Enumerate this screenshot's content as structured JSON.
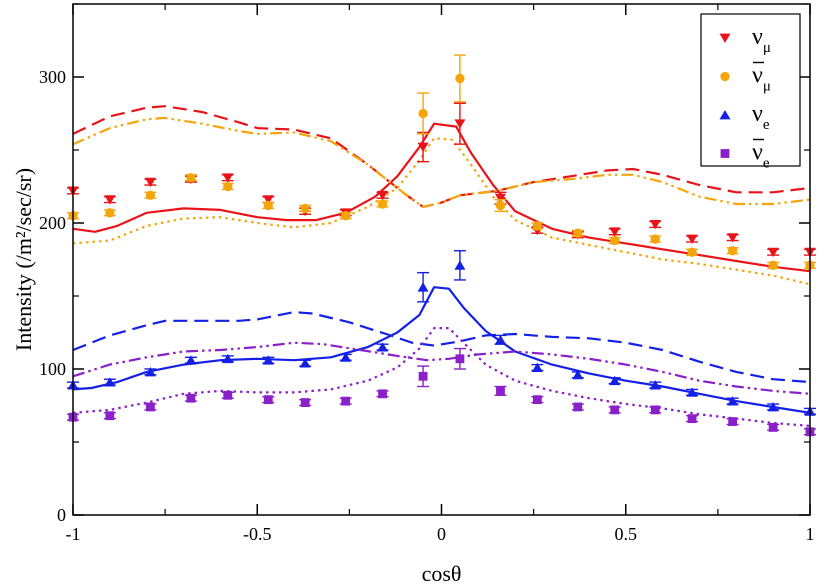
{
  "chart_data": {
    "type": "scatter",
    "title": "",
    "xlabel": "cosθ",
    "ylabel": "Intensity (/m²/sec/sr)",
    "xlim": [
      -1,
      1
    ],
    "ylim": [
      0,
      350
    ],
    "x_ticks": [
      -1,
      -0.5,
      0,
      0.5,
      1
    ],
    "x_tick_labels": [
      "-1",
      "-0.5",
      "0",
      "0.5",
      "1"
    ],
    "y_ticks": [
      0,
      100,
      200,
      300
    ],
    "y_tick_labels": [
      "0",
      "100",
      "200",
      "300"
    ],
    "legend_position": "top-right",
    "legend": [
      {
        "label": "ν",
        "sub": "μ",
        "bar": false,
        "marker": "triangle-down",
        "color": "#e8141a"
      },
      {
        "label": "ν",
        "sub": "μ",
        "bar": true,
        "marker": "circle",
        "color": "#f5a50c"
      },
      {
        "label": "ν",
        "sub": "e",
        "bar": false,
        "marker": "triangle-up",
        "color": "#1420e6"
      },
      {
        "label": "ν",
        "sub": "e",
        "bar": true,
        "marker": "square",
        "color": "#8a20c8"
      }
    ],
    "series": [
      {
        "name": "nu_mu",
        "color": "#e8141a",
        "marker": "triangle-down",
        "points": [
          [
            -1,
            222
          ],
          [
            -0.9,
            216
          ],
          [
            -0.79,
            228
          ],
          [
            -0.68,
            230
          ],
          [
            -0.58,
            231
          ],
          [
            -0.47,
            216
          ],
          [
            -0.37,
            208
          ],
          [
            -0.26,
            207
          ],
          [
            -0.16,
            219
          ],
          [
            -0.05,
            252
          ],
          [
            0.05,
            268
          ],
          [
            0.16,
            217
          ],
          [
            0.26,
            195
          ],
          [
            0.37,
            192
          ],
          [
            0.47,
            194
          ],
          [
            0.58,
            199
          ],
          [
            0.68,
            189
          ],
          [
            0.79,
            190
          ],
          [
            0.9,
            180
          ],
          [
            1,
            180
          ]
        ],
        "errors": [
          [
            -0.05,
            10
          ],
          [
            0.05,
            14
          ],
          [
            0.16,
            4
          ]
        ]
      },
      {
        "name": "nu_mu_bar",
        "color": "#f5a50c",
        "marker": "circle",
        "points": [
          [
            -1,
            205
          ],
          [
            -0.9,
            207
          ],
          [
            -0.79,
            219
          ],
          [
            -0.68,
            231
          ],
          [
            -0.58,
            225
          ],
          [
            -0.47,
            212
          ],
          [
            -0.37,
            210
          ],
          [
            -0.26,
            205
          ],
          [
            -0.16,
            213
          ],
          [
            -0.05,
            275
          ],
          [
            0.05,
            299
          ],
          [
            0.16,
            212
          ],
          [
            0.26,
            198
          ],
          [
            0.37,
            193
          ],
          [
            0.47,
            188
          ],
          [
            0.58,
            189
          ],
          [
            0.68,
            180
          ],
          [
            0.79,
            181
          ],
          [
            0.9,
            171
          ],
          [
            1,
            171
          ]
        ],
        "errors": [
          [
            -0.05,
            14
          ],
          [
            0.05,
            16
          ],
          [
            0.16,
            4
          ]
        ]
      },
      {
        "name": "nu_e",
        "color": "#1420e6",
        "marker": "triangle-up",
        "points": [
          [
            -1,
            89
          ],
          [
            -0.9,
            91
          ],
          [
            -0.79,
            98
          ],
          [
            -0.68,
            106
          ],
          [
            -0.58,
            107
          ],
          [
            -0.47,
            106
          ],
          [
            -0.37,
            104
          ],
          [
            -0.26,
            108
          ],
          [
            -0.16,
            115
          ],
          [
            -0.05,
            156
          ],
          [
            0.05,
            171
          ],
          [
            0.16,
            120
          ],
          [
            0.26,
            101
          ],
          [
            0.37,
            96
          ],
          [
            0.47,
            92
          ],
          [
            0.58,
            89
          ],
          [
            0.68,
            84
          ],
          [
            0.79,
            78
          ],
          [
            0.9,
            74
          ],
          [
            1,
            71
          ]
        ],
        "errors": [
          [
            -0.05,
            10
          ],
          [
            0.05,
            10
          ],
          [
            0.16,
            3
          ]
        ]
      },
      {
        "name": "nu_e_bar",
        "color": "#8a20c8",
        "marker": "square",
        "points": [
          [
            -1,
            67
          ],
          [
            -0.9,
            68
          ],
          [
            -0.79,
            74
          ],
          [
            -0.68,
            80
          ],
          [
            -0.58,
            82
          ],
          [
            -0.47,
            79
          ],
          [
            -0.37,
            77
          ],
          [
            -0.26,
            78
          ],
          [
            -0.16,
            83
          ],
          [
            -0.05,
            95
          ],
          [
            0.05,
            107
          ],
          [
            0.16,
            85
          ],
          [
            0.26,
            79
          ],
          [
            0.37,
            74
          ],
          [
            0.47,
            72
          ],
          [
            0.58,
            72
          ],
          [
            0.68,
            66
          ],
          [
            0.79,
            64
          ],
          [
            0.9,
            60
          ],
          [
            1,
            57
          ]
        ],
        "errors": [
          [
            -0.05,
            7
          ],
          [
            0.05,
            7
          ],
          [
            0.16,
            3
          ]
        ]
      }
    ],
    "curves": [
      {
        "name": "nu_mu-solid",
        "color": "#e8141a",
        "style": "solid",
        "width": 2.2,
        "points": [
          [
            -1,
            196
          ],
          [
            -0.94,
            194
          ],
          [
            -0.88,
            198
          ],
          [
            -0.8,
            207
          ],
          [
            -0.7,
            210
          ],
          [
            -0.6,
            209
          ],
          [
            -0.5,
            204
          ],
          [
            -0.42,
            202
          ],
          [
            -0.34,
            202
          ],
          [
            -0.26,
            207
          ],
          [
            -0.18,
            218
          ],
          [
            -0.12,
            232
          ],
          [
            -0.06,
            252
          ],
          [
            -0.02,
            268
          ],
          [
            0.04,
            266
          ],
          [
            0.08,
            248
          ],
          [
            0.14,
            226
          ],
          [
            0.2,
            208
          ],
          [
            0.3,
            196
          ],
          [
            0.4,
            190
          ],
          [
            0.5,
            186
          ],
          [
            0.6,
            182
          ],
          [
            0.7,
            178
          ],
          [
            0.8,
            174
          ],
          [
            0.9,
            170
          ],
          [
            1,
            167
          ]
        ]
      },
      {
        "name": "nu_mu-dash",
        "color": "#e8141a",
        "style": "dash",
        "width": 2.2,
        "points": [
          [
            -1,
            261
          ],
          [
            -0.9,
            273
          ],
          [
            -0.8,
            279
          ],
          [
            -0.75,
            280
          ],
          [
            -0.65,
            276
          ],
          [
            -0.55,
            269
          ],
          [
            -0.5,
            265
          ],
          [
            -0.4,
            264
          ],
          [
            -0.3,
            258
          ],
          [
            -0.2,
            240
          ],
          [
            -0.1,
            220
          ],
          [
            -0.05,
            211
          ],
          [
            0,
            214
          ],
          [
            0.05,
            219
          ],
          [
            0.15,
            222
          ],
          [
            0.25,
            228
          ],
          [
            0.35,
            232
          ],
          [
            0.45,
            236
          ],
          [
            0.52,
            237
          ],
          [
            0.6,
            233
          ],
          [
            0.7,
            226
          ],
          [
            0.8,
            221
          ],
          [
            0.9,
            221
          ],
          [
            1,
            224
          ]
        ]
      },
      {
        "name": "nu_mu-dot",
        "color": "#f5a50c",
        "style": "dot",
        "width": 2.2,
        "points": [
          [
            -1,
            186
          ],
          [
            -0.9,
            188
          ],
          [
            -0.8,
            198
          ],
          [
            -0.7,
            203
          ],
          [
            -0.6,
            204
          ],
          [
            -0.5,
            200
          ],
          [
            -0.4,
            197
          ],
          [
            -0.3,
            200
          ],
          [
            -0.2,
            211
          ],
          [
            -0.12,
            224
          ],
          [
            -0.06,
            243
          ],
          [
            -0.02,
            258
          ],
          [
            0.03,
            257
          ],
          [
            0.08,
            240
          ],
          [
            0.14,
            218
          ],
          [
            0.2,
            202
          ],
          [
            0.3,
            190
          ],
          [
            0.4,
            185
          ],
          [
            0.5,
            180
          ],
          [
            0.6,
            175
          ],
          [
            0.7,
            172
          ],
          [
            0.8,
            168
          ],
          [
            0.9,
            164
          ],
          [
            1,
            158
          ]
        ]
      },
      {
        "name": "nu_mu-dashdot",
        "color": "#f5a50c",
        "style": "dashdot",
        "width": 2.2,
        "points": [
          [
            -1,
            254
          ],
          [
            -0.9,
            265
          ],
          [
            -0.8,
            271
          ],
          [
            -0.75,
            272
          ],
          [
            -0.65,
            268
          ],
          [
            -0.55,
            263
          ],
          [
            -0.5,
            261
          ],
          [
            -0.4,
            262
          ],
          [
            -0.3,
            256
          ],
          [
            -0.2,
            240
          ],
          [
            -0.1,
            220
          ],
          [
            -0.05,
            211
          ],
          [
            0,
            214
          ],
          [
            0.05,
            219
          ],
          [
            0.15,
            222
          ],
          [
            0.25,
            228
          ],
          [
            0.35,
            230
          ],
          [
            0.45,
            233
          ],
          [
            0.52,
            233
          ],
          [
            0.6,
            228
          ],
          [
            0.7,
            218
          ],
          [
            0.8,
            213
          ],
          [
            0.9,
            213
          ],
          [
            1,
            216
          ]
        ]
      },
      {
        "name": "nu_e-solid",
        "color": "#1420e6",
        "style": "solid",
        "width": 2.2,
        "points": [
          [
            -1,
            86
          ],
          [
            -0.95,
            87
          ],
          [
            -0.88,
            91
          ],
          [
            -0.8,
            98
          ],
          [
            -0.7,
            103
          ],
          [
            -0.6,
            106
          ],
          [
            -0.5,
            107
          ],
          [
            -0.4,
            106
          ],
          [
            -0.3,
            108
          ],
          [
            -0.2,
            115
          ],
          [
            -0.12,
            125
          ],
          [
            -0.06,
            137
          ],
          [
            -0.02,
            156
          ],
          [
            0.02,
            155
          ],
          [
            0.06,
            142
          ],
          [
            0.12,
            126
          ],
          [
            0.2,
            112
          ],
          [
            0.3,
            103
          ],
          [
            0.4,
            97
          ],
          [
            0.5,
            92
          ],
          [
            0.6,
            88
          ],
          [
            0.7,
            83
          ],
          [
            0.8,
            78
          ],
          [
            0.9,
            74
          ],
          [
            1,
            70
          ]
        ]
      },
      {
        "name": "nu_e-dash",
        "color": "#1420e6",
        "style": "dash",
        "width": 2.2,
        "points": [
          [
            -1,
            113
          ],
          [
            -0.9,
            123
          ],
          [
            -0.8,
            130
          ],
          [
            -0.75,
            133
          ],
          [
            -0.65,
            133
          ],
          [
            -0.55,
            133
          ],
          [
            -0.5,
            134
          ],
          [
            -0.4,
            139
          ],
          [
            -0.35,
            138
          ],
          [
            -0.25,
            132
          ],
          [
            -0.15,
            124
          ],
          [
            -0.08,
            118
          ],
          [
            -0.02,
            116
          ],
          [
            0.05,
            119
          ],
          [
            0.12,
            123
          ],
          [
            0.2,
            124
          ],
          [
            0.3,
            122
          ],
          [
            0.4,
            121
          ],
          [
            0.5,
            118
          ],
          [
            0.6,
            113
          ],
          [
            0.7,
            105
          ],
          [
            0.8,
            98
          ],
          [
            0.9,
            93
          ],
          [
            1,
            91
          ]
        ]
      },
      {
        "name": "nu_e-dot",
        "color": "#8a20c8",
        "style": "dot",
        "width": 2.2,
        "points": [
          [
            -1,
            70
          ],
          [
            -0.9,
            72
          ],
          [
            -0.8,
            77
          ],
          [
            -0.7,
            83
          ],
          [
            -0.6,
            85
          ],
          [
            -0.5,
            84
          ],
          [
            -0.4,
            84
          ],
          [
            -0.3,
            86
          ],
          [
            -0.2,
            92
          ],
          [
            -0.12,
            101
          ],
          [
            -0.06,
            114
          ],
          [
            -0.02,
            128
          ],
          [
            0.02,
            128
          ],
          [
            0.06,
            118
          ],
          [
            0.12,
            103
          ],
          [
            0.2,
            92
          ],
          [
            0.3,
            85
          ],
          [
            0.4,
            80
          ],
          [
            0.5,
            76
          ],
          [
            0.6,
            73
          ],
          [
            0.7,
            69
          ],
          [
            0.8,
            66
          ],
          [
            0.9,
            63
          ],
          [
            1,
            61
          ]
        ]
      },
      {
        "name": "nu_e-dashdot",
        "color": "#8a20c8",
        "style": "dashdot",
        "width": 2.2,
        "points": [
          [
            -1,
            95
          ],
          [
            -0.9,
            103
          ],
          [
            -0.8,
            108
          ],
          [
            -0.7,
            112
          ],
          [
            -0.6,
            113
          ],
          [
            -0.5,
            115
          ],
          [
            -0.4,
            118
          ],
          [
            -0.32,
            117
          ],
          [
            -0.22,
            113
          ],
          [
            -0.12,
            109
          ],
          [
            -0.04,
            106
          ],
          [
            0.02,
            107
          ],
          [
            0.1,
            110
          ],
          [
            0.2,
            112
          ],
          [
            0.3,
            110
          ],
          [
            0.4,
            107
          ],
          [
            0.5,
            103
          ],
          [
            0.6,
            98
          ],
          [
            0.7,
            92
          ],
          [
            0.8,
            88
          ],
          [
            0.9,
            85
          ],
          [
            1,
            83
          ]
        ]
      }
    ]
  }
}
